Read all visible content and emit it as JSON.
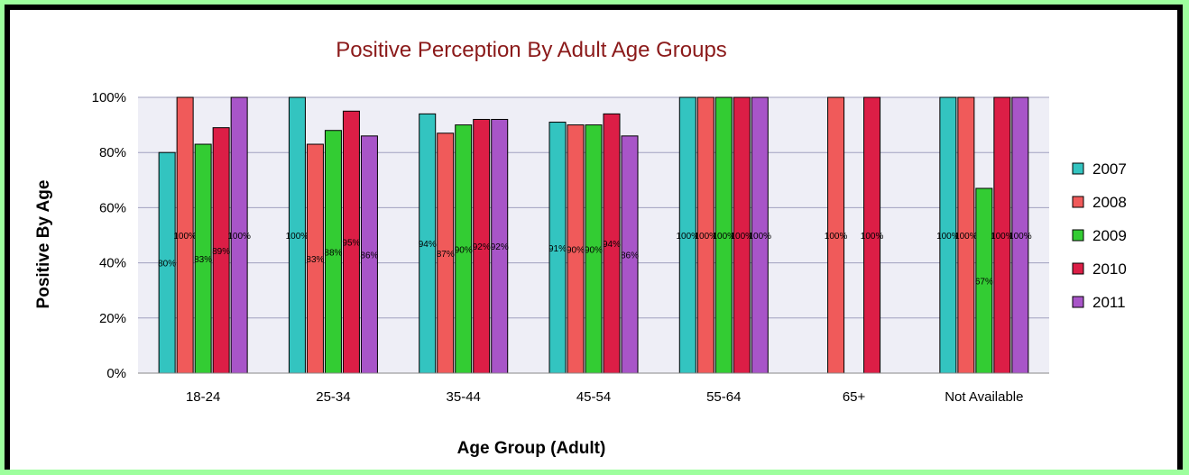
{
  "chart_data": {
    "type": "bar",
    "title": "Positive Perception By Adult Age Groups",
    "xlabel": "Age Group (Adult)",
    "ylabel": "Positive By Age",
    "ylim": [
      0,
      100
    ],
    "yticks": [
      "0%",
      "20%",
      "40%",
      "60%",
      "80%",
      "100%"
    ],
    "categories": [
      "18-24",
      "25-34",
      "35-44",
      "45-54",
      "55-64",
      "65+",
      "Not Available"
    ],
    "series": [
      {
        "name": "2007",
        "color": "#33c4c0",
        "values": [
          80,
          100,
          94,
          91,
          100,
          null,
          100
        ],
        "labels": [
          "80%",
          "100%",
          "94%",
          "91%",
          "100%",
          "",
          "100%"
        ]
      },
      {
        "name": "2008",
        "color": "#f05a5a",
        "values": [
          100,
          83,
          87,
          90,
          100,
          100,
          100
        ],
        "labels": [
          "100%",
          "83%",
          "87%",
          "90%",
          "100%",
          "100%",
          "100%"
        ]
      },
      {
        "name": "2009",
        "color": "#33cc33",
        "values": [
          83,
          88,
          90,
          90,
          100,
          null,
          67
        ],
        "labels": [
          "83%",
          "88%",
          "90%",
          "90%",
          "100%",
          "",
          "67%"
        ]
      },
      {
        "name": "2010",
        "color": "#dc1e46",
        "values": [
          89,
          95,
          92,
          94,
          100,
          100,
          100
        ],
        "labels": [
          "89%",
          "95%",
          "92%",
          "94%",
          "100%",
          "100%",
          "100%"
        ]
      },
      {
        "name": "2011",
        "color": "#a855c8",
        "values": [
          100,
          86,
          92,
          86,
          100,
          null,
          100
        ],
        "labels": [
          "100%",
          "86%",
          "92%",
          "86%",
          "100%",
          "",
          "100%"
        ]
      }
    ],
    "grid": true,
    "legend": "right"
  }
}
